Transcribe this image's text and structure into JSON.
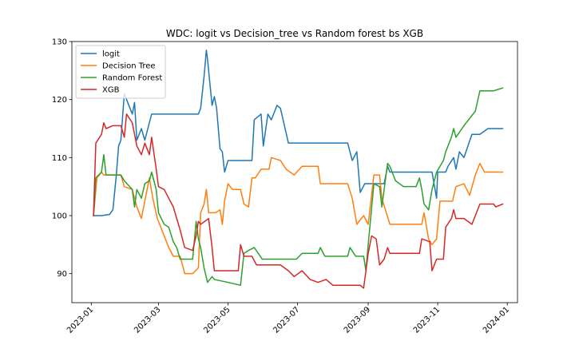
{
  "chart_data": {
    "type": "line",
    "title": "WDC: logit vs Decision_tree vs Random forest bs XGB",
    "xlabel": "",
    "ylabel": "",
    "x_type": "date",
    "xlim": [
      "2022-12-15",
      "2024-01-10"
    ],
    "ylim": [
      85,
      130
    ],
    "yticks": [
      90,
      100,
      110,
      120,
      130
    ],
    "xticks": [
      "2023-01",
      "2023-03",
      "2023-05",
      "2023-07",
      "2023-09",
      "2023-11",
      "2024-01"
    ],
    "xtick_dates": [
      "2023-01-01",
      "2023-03-01",
      "2023-05-01",
      "2023-07-01",
      "2023-09-01",
      "2023-11-01",
      "2024-01-01"
    ],
    "grid": false,
    "legend": "top-left",
    "series": [
      {
        "name": "logit",
        "color": "#1f77b4",
        "points": [
          [
            "2023-01-03",
            100.0
          ],
          [
            "2023-01-10",
            100.0
          ],
          [
            "2023-01-17",
            100.2
          ],
          [
            "2023-01-20",
            101.0
          ],
          [
            "2023-01-23",
            107.0
          ],
          [
            "2023-01-25",
            112.0
          ],
          [
            "2023-01-27",
            113.0
          ],
          [
            "2023-01-30",
            121.0
          ],
          [
            "2023-02-02",
            119.5
          ],
          [
            "2023-02-06",
            117.5
          ],
          [
            "2023-02-08",
            119.5
          ],
          [
            "2023-02-10",
            113.0
          ],
          [
            "2023-02-14",
            115.0
          ],
          [
            "2023-02-17",
            113.0
          ],
          [
            "2023-02-21",
            116.0
          ],
          [
            "2023-02-23",
            117.5
          ],
          [
            "2023-03-15",
            117.5
          ],
          [
            "2023-04-05",
            117.5
          ],
          [
            "2023-04-07",
            118.5
          ],
          [
            "2023-04-10",
            124.0
          ],
          [
            "2023-04-12",
            128.5
          ],
          [
            "2023-04-13",
            127.0
          ],
          [
            "2023-04-17",
            119.0
          ],
          [
            "2023-04-19",
            120.5
          ],
          [
            "2023-04-21",
            118.5
          ],
          [
            "2023-04-24",
            111.5
          ],
          [
            "2023-04-26",
            111.0
          ],
          [
            "2023-04-28",
            107.5
          ],
          [
            "2023-05-01",
            109.5
          ],
          [
            "2023-05-22",
            109.5
          ],
          [
            "2023-05-24",
            116.5
          ],
          [
            "2023-05-30",
            117.5
          ],
          [
            "2023-06-01",
            112.0
          ],
          [
            "2023-06-05",
            117.5
          ],
          [
            "2023-06-08",
            116.5
          ],
          [
            "2023-06-13",
            119.0
          ],
          [
            "2023-06-16",
            118.5
          ],
          [
            "2023-06-23",
            112.5
          ],
          [
            "2023-08-14",
            112.5
          ],
          [
            "2023-08-18",
            109.5
          ],
          [
            "2023-08-22",
            111.0
          ],
          [
            "2023-08-25",
            104.0
          ],
          [
            "2023-08-29",
            105.5
          ],
          [
            "2023-09-15",
            105.5
          ],
          [
            "2023-09-18",
            108.5
          ],
          [
            "2023-09-20",
            107.5
          ],
          [
            "2023-10-06",
            107.5
          ],
          [
            "2023-10-27",
            107.5
          ],
          [
            "2023-10-31",
            103.0
          ],
          [
            "2023-11-01",
            107.5
          ],
          [
            "2023-11-08",
            107.5
          ],
          [
            "2023-11-10",
            108.5
          ],
          [
            "2023-11-15",
            110.0
          ],
          [
            "2023-11-17",
            108.0
          ],
          [
            "2023-11-20",
            111.0
          ],
          [
            "2023-11-24",
            110.0
          ],
          [
            "2023-12-01",
            114.0
          ],
          [
            "2023-12-08",
            114.0
          ],
          [
            "2023-12-15",
            115.0
          ],
          [
            "2023-12-28",
            115.0
          ]
        ]
      },
      {
        "name": "Decision Tree",
        "color": "#ff7f0e",
        "points": [
          [
            "2023-01-03",
            100.0
          ],
          [
            "2023-01-06",
            106.5
          ],
          [
            "2023-01-10",
            107.5
          ],
          [
            "2023-01-12",
            107.0
          ],
          [
            "2023-01-27",
            107.0
          ],
          [
            "2023-01-30",
            105.0
          ],
          [
            "2023-02-06",
            104.5
          ],
          [
            "2023-02-10",
            101.5
          ],
          [
            "2023-02-14",
            99.5
          ],
          [
            "2023-02-17",
            102.5
          ],
          [
            "2023-02-21",
            106.5
          ],
          [
            "2023-02-24",
            103.0
          ],
          [
            "2023-02-28",
            99.5
          ],
          [
            "2023-03-06",
            96.5
          ],
          [
            "2023-03-10",
            94.5
          ],
          [
            "2023-03-14",
            93.0
          ],
          [
            "2023-03-20",
            93.0
          ],
          [
            "2023-03-24",
            90.0
          ],
          [
            "2023-03-31",
            90.0
          ],
          [
            "2023-04-05",
            91.0
          ],
          [
            "2023-04-07",
            100.5
          ],
          [
            "2023-04-10",
            102.0
          ],
          [
            "2023-04-12",
            104.5
          ],
          [
            "2023-04-14",
            100.5
          ],
          [
            "2023-04-20",
            100.5
          ],
          [
            "2023-04-24",
            101.0
          ],
          [
            "2023-04-26",
            98.5
          ],
          [
            "2023-04-28",
            102.5
          ],
          [
            "2023-05-01",
            105.5
          ],
          [
            "2023-05-05",
            104.5
          ],
          [
            "2023-05-12",
            104.5
          ],
          [
            "2023-05-15",
            102.0
          ],
          [
            "2023-05-19",
            101.5
          ],
          [
            "2023-05-22",
            106.5
          ],
          [
            "2023-05-25",
            106.5
          ],
          [
            "2023-05-30",
            108.0
          ],
          [
            "2023-06-06",
            108.0
          ],
          [
            "2023-06-08",
            110.0
          ],
          [
            "2023-06-16",
            109.5
          ],
          [
            "2023-06-21",
            108.0
          ],
          [
            "2023-06-28",
            107.0
          ],
          [
            "2023-07-05",
            108.5
          ],
          [
            "2023-07-19",
            108.5
          ],
          [
            "2023-07-21",
            105.5
          ],
          [
            "2023-07-28",
            105.5
          ],
          [
            "2023-08-14",
            105.5
          ],
          [
            "2023-08-18",
            103.0
          ],
          [
            "2023-08-22",
            98.5
          ],
          [
            "2023-08-28",
            100.0
          ],
          [
            "2023-09-01",
            98.5
          ],
          [
            "2023-09-06",
            107.0
          ],
          [
            "2023-09-11",
            107.0
          ],
          [
            "2023-09-13",
            103.0
          ],
          [
            "2023-09-20",
            98.5
          ],
          [
            "2023-10-18",
            98.5
          ],
          [
            "2023-10-20",
            100.5
          ],
          [
            "2023-10-24",
            96.0
          ],
          [
            "2023-10-27",
            95.0
          ],
          [
            "2023-10-31",
            96.0
          ],
          [
            "2023-11-03",
            102.5
          ],
          [
            "2023-11-08",
            102.5
          ],
          [
            "2023-11-14",
            102.5
          ],
          [
            "2023-11-17",
            105.0
          ],
          [
            "2023-11-24",
            105.5
          ],
          [
            "2023-11-29",
            103.5
          ],
          [
            "2023-12-04",
            107.0
          ],
          [
            "2023-12-08",
            109.0
          ],
          [
            "2023-12-12",
            107.5
          ],
          [
            "2023-12-28",
            107.5
          ]
        ]
      },
      {
        "name": "Random Forest",
        "color": "#2ca02c",
        "points": [
          [
            "2023-01-03",
            100.0
          ],
          [
            "2023-01-05",
            106.5
          ],
          [
            "2023-01-10",
            107.5
          ],
          [
            "2023-01-12",
            110.5
          ],
          [
            "2023-01-14",
            107.0
          ],
          [
            "2023-01-27",
            107.0
          ],
          [
            "2023-01-30",
            106.0
          ],
          [
            "2023-02-06",
            104.5
          ],
          [
            "2023-02-08",
            101.5
          ],
          [
            "2023-02-10",
            104.5
          ],
          [
            "2023-02-14",
            103.0
          ],
          [
            "2023-02-17",
            105.5
          ],
          [
            "2023-02-21",
            106.0
          ],
          [
            "2023-02-23",
            107.5
          ],
          [
            "2023-02-27",
            104.5
          ],
          [
            "2023-03-01",
            100.5
          ],
          [
            "2023-03-06",
            98.5
          ],
          [
            "2023-03-10",
            98.0
          ],
          [
            "2023-03-14",
            95.5
          ],
          [
            "2023-03-17",
            94.5
          ],
          [
            "2023-03-20",
            92.5
          ],
          [
            "2023-03-31",
            92.5
          ],
          [
            "2023-04-03",
            99.0
          ],
          [
            "2023-04-05",
            96.0
          ],
          [
            "2023-04-07",
            94.5
          ],
          [
            "2023-04-10",
            91.0
          ],
          [
            "2023-04-13",
            88.5
          ],
          [
            "2023-04-17",
            89.5
          ],
          [
            "2023-04-19",
            89.0
          ],
          [
            "2023-05-01",
            88.5
          ],
          [
            "2023-05-12",
            88.0
          ],
          [
            "2023-05-15",
            93.5
          ],
          [
            "2023-05-19",
            94.0
          ],
          [
            "2023-05-24",
            94.5
          ],
          [
            "2023-05-31",
            92.5
          ],
          [
            "2023-06-30",
            92.5
          ],
          [
            "2023-07-05",
            93.5
          ],
          [
            "2023-07-19",
            93.5
          ],
          [
            "2023-07-21",
            94.5
          ],
          [
            "2023-07-25",
            93.0
          ],
          [
            "2023-08-14",
            93.0
          ],
          [
            "2023-08-16",
            94.5
          ],
          [
            "2023-08-21",
            93.0
          ],
          [
            "2023-08-28",
            93.0
          ],
          [
            "2023-08-30",
            90.5
          ],
          [
            "2023-09-01",
            95.0
          ],
          [
            "2023-09-06",
            105.5
          ],
          [
            "2023-09-11",
            105.0
          ],
          [
            "2023-09-13",
            101.5
          ],
          [
            "2023-09-18",
            109.0
          ],
          [
            "2023-09-20",
            108.5
          ],
          [
            "2023-09-25",
            106.0
          ],
          [
            "2023-10-02",
            105.0
          ],
          [
            "2023-10-13",
            105.0
          ],
          [
            "2023-10-16",
            106.5
          ],
          [
            "2023-10-18",
            104.5
          ],
          [
            "2023-10-20",
            102.0
          ],
          [
            "2023-10-24",
            101.0
          ],
          [
            "2023-10-27",
            104.5
          ],
          [
            "2023-10-31",
            107.5
          ],
          [
            "2023-11-06",
            109.5
          ],
          [
            "2023-11-08",
            111.0
          ],
          [
            "2023-11-13",
            113.5
          ],
          [
            "2023-11-15",
            115.0
          ],
          [
            "2023-11-17",
            113.5
          ],
          [
            "2023-11-24",
            115.5
          ],
          [
            "2023-12-04",
            118.0
          ],
          [
            "2023-12-08",
            121.5
          ],
          [
            "2023-12-20",
            121.5
          ],
          [
            "2023-12-28",
            122.0
          ]
        ]
      },
      {
        "name": "XGB",
        "color": "#d62728",
        "points": [
          [
            "2023-01-03",
            100.0
          ],
          [
            "2023-01-05",
            112.5
          ],
          [
            "2023-01-10",
            114.0
          ],
          [
            "2023-01-12",
            116.0
          ],
          [
            "2023-01-14",
            115.0
          ],
          [
            "2023-01-20",
            115.5
          ],
          [
            "2023-01-27",
            115.5
          ],
          [
            "2023-01-30",
            113.5
          ],
          [
            "2023-02-01",
            117.5
          ],
          [
            "2023-02-06",
            116.0
          ],
          [
            "2023-02-08",
            114.0
          ],
          [
            "2023-02-10",
            112.0
          ],
          [
            "2023-02-14",
            110.5
          ],
          [
            "2023-02-17",
            112.5
          ],
          [
            "2023-02-21",
            110.5
          ],
          [
            "2023-02-23",
            113.5
          ],
          [
            "2023-02-27",
            108.0
          ],
          [
            "2023-03-01",
            105.0
          ],
          [
            "2023-03-06",
            104.5
          ],
          [
            "2023-03-10",
            103.0
          ],
          [
            "2023-03-14",
            101.5
          ],
          [
            "2023-03-17",
            99.5
          ],
          [
            "2023-03-20",
            97.5
          ],
          [
            "2023-03-24",
            94.5
          ],
          [
            "2023-03-31",
            94.0
          ],
          [
            "2023-04-03",
            96.5
          ],
          [
            "2023-04-05",
            99.0
          ],
          [
            "2023-04-07",
            98.5
          ],
          [
            "2023-04-14",
            99.5
          ],
          [
            "2023-04-17",
            94.5
          ],
          [
            "2023-04-19",
            90.5
          ],
          [
            "2023-05-01",
            90.5
          ],
          [
            "2023-05-10",
            90.5
          ],
          [
            "2023-05-12",
            95.0
          ],
          [
            "2023-05-15",
            93.0
          ],
          [
            "2023-05-22",
            93.0
          ],
          [
            "2023-05-26",
            91.5
          ],
          [
            "2023-06-16",
            91.5
          ],
          [
            "2023-06-23",
            90.5
          ],
          [
            "2023-06-28",
            89.5
          ],
          [
            "2023-07-05",
            90.5
          ],
          [
            "2023-07-12",
            89.0
          ],
          [
            "2023-07-19",
            88.5
          ],
          [
            "2023-07-26",
            89.0
          ],
          [
            "2023-08-01",
            88.0
          ],
          [
            "2023-08-25",
            88.0
          ],
          [
            "2023-08-28",
            87.5
          ],
          [
            "2023-09-01",
            93.5
          ],
          [
            "2023-09-04",
            96.5
          ],
          [
            "2023-09-08",
            96.0
          ],
          [
            "2023-09-11",
            91.5
          ],
          [
            "2023-09-15",
            92.5
          ],
          [
            "2023-09-18",
            94.5
          ],
          [
            "2023-09-20",
            93.5
          ],
          [
            "2023-10-16",
            93.5
          ],
          [
            "2023-10-18",
            96.0
          ],
          [
            "2023-10-25",
            95.5
          ],
          [
            "2023-10-27",
            90.5
          ],
          [
            "2023-10-31",
            92.5
          ],
          [
            "2023-11-06",
            92.5
          ],
          [
            "2023-11-08",
            98.0
          ],
          [
            "2023-11-13",
            99.5
          ],
          [
            "2023-11-15",
            101.0
          ],
          [
            "2023-11-17",
            99.5
          ],
          [
            "2023-11-24",
            99.5
          ],
          [
            "2023-12-01",
            98.5
          ],
          [
            "2023-12-08",
            102.0
          ],
          [
            "2023-12-20",
            102.0
          ],
          [
            "2023-12-22",
            101.5
          ],
          [
            "2023-12-28",
            102.0
          ]
        ]
      }
    ]
  }
}
